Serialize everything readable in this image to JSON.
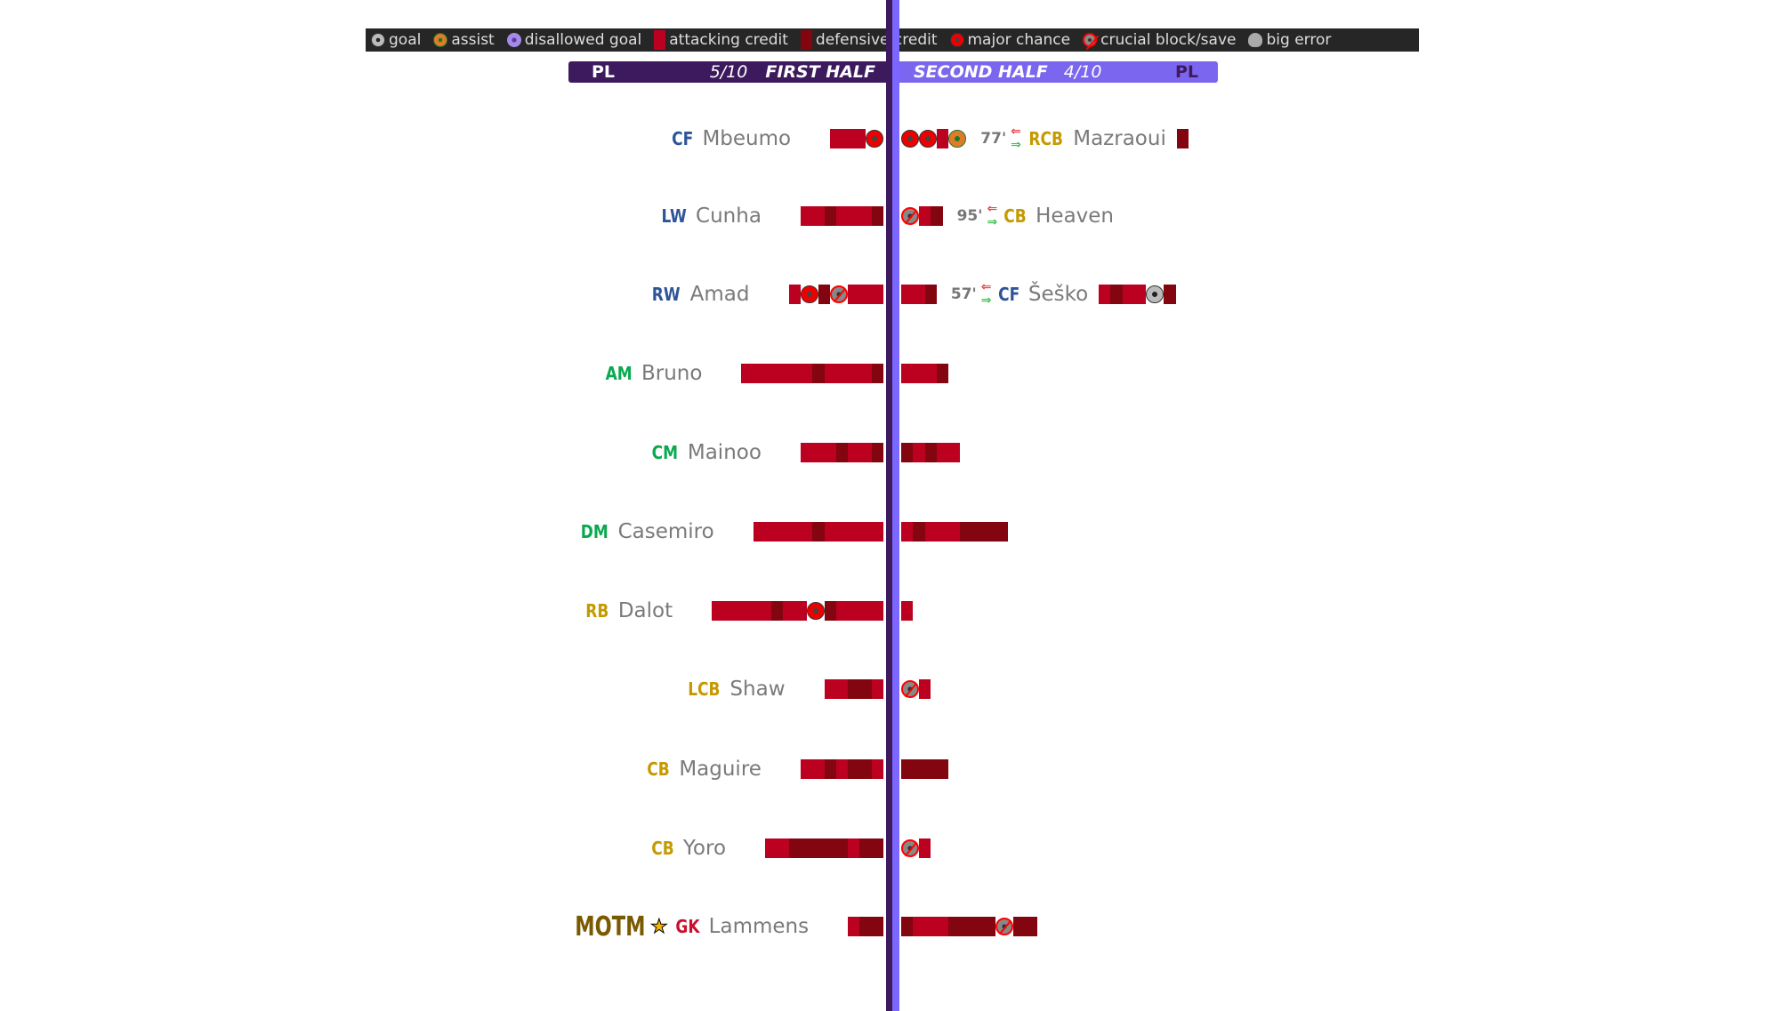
{
  "legend": [
    {
      "icon": "goal",
      "label": "goal"
    },
    {
      "icon": "assist",
      "label": "assist"
    },
    {
      "icon": "disallowed",
      "label": "disallowed goal"
    },
    {
      "icon": "a",
      "label": "attacking credit"
    },
    {
      "icon": "d",
      "label": "defensive credit"
    },
    {
      "icon": "major",
      "label": "major chance"
    },
    {
      "icon": "block",
      "label": "crucial block/save"
    },
    {
      "icon": "error",
      "label": "big error"
    }
  ],
  "header": {
    "left_comp": "PL",
    "left_score": "5/10",
    "left_title": "FIRST HALF",
    "right_title": "SECOND HALF",
    "right_score": "4/10",
    "right_comp": "PL"
  },
  "colors": {
    "attacking": "#bb0020",
    "defensive": "#830510",
    "first_half": "#3d1a5e",
    "second_half": "#7b66f0"
  },
  "motm": {
    "label": "MOTM",
    "icon": "star-icon"
  },
  "rows": [
    {
      "pos": "CF",
      "group": "fwd",
      "name": "Mbeumo",
      "first": [
        "a3",
        "major"
      ],
      "second": [
        "major",
        "major",
        "a1",
        "assist"
      ],
      "sub": {
        "minute": "77'",
        "pos": "RCB",
        "group": "def",
        "name": "Mazraoui",
        "segs": [
          "d1"
        ]
      }
    },
    {
      "pos": "LW",
      "group": "fwd",
      "name": "Cunha",
      "first": [
        "a2",
        "d1",
        "a3",
        "d1"
      ],
      "second": [
        "block",
        "a1",
        "d1"
      ],
      "sub": {
        "minute": "95'",
        "pos": "CB",
        "group": "def",
        "name": "Heaven",
        "segs": []
      }
    },
    {
      "pos": "RW",
      "group": "fwd",
      "name": "Amad",
      "first": [
        "a1",
        "major",
        "d1",
        "block",
        "a3"
      ],
      "second": [
        "a2",
        "d1"
      ],
      "sub": {
        "minute": "57'",
        "pos": "CF",
        "group": "fwd",
        "name": "Šeško",
        "segs": [
          "a1",
          "d1",
          "a2",
          "goal",
          "d1"
        ]
      }
    },
    {
      "pos": "AM",
      "group": "mid",
      "name": "Bruno",
      "first": [
        "a6",
        "d1",
        "a4",
        "d1"
      ],
      "second": [
        "a3",
        "d1"
      ]
    },
    {
      "pos": "CM",
      "group": "mid",
      "name": "Mainoo",
      "first": [
        "a3",
        "d1",
        "a2",
        "d1"
      ],
      "second": [
        "d1",
        "a1",
        "d1",
        "a2"
      ]
    },
    {
      "pos": "DM",
      "group": "mid",
      "name": "Casemiro",
      "first": [
        "a5",
        "d1",
        "a5"
      ],
      "second": [
        "a1",
        "d1",
        "a3",
        "d4"
      ]
    },
    {
      "pos": "RB",
      "group": "def",
      "name": "Dalot",
      "first": [
        "a5",
        "d1",
        "a2",
        "major",
        "d1",
        "a4"
      ],
      "second": [
        "a1"
      ]
    },
    {
      "pos": "LCB",
      "group": "def",
      "name": "Shaw",
      "first": [
        "a2",
        "d2",
        "a1"
      ],
      "second": [
        "block",
        "a1"
      ]
    },
    {
      "pos": "CB",
      "group": "def",
      "name": "Maguire",
      "first": [
        "a2",
        "d1",
        "a1",
        "d2",
        "a1"
      ],
      "second": [
        "d4"
      ]
    },
    {
      "pos": "CB",
      "group": "def",
      "name": "Yoro",
      "first": [
        "a2",
        "d5",
        "a1",
        "d2"
      ],
      "second": [
        "block",
        "a1"
      ]
    },
    {
      "pos": "GK",
      "group": "gk",
      "name": "Lammens",
      "motm": true,
      "first": [
        "a1",
        "d2"
      ],
      "second": [
        "d1",
        "a3",
        "d4",
        "block",
        "d2"
      ]
    }
  ]
}
